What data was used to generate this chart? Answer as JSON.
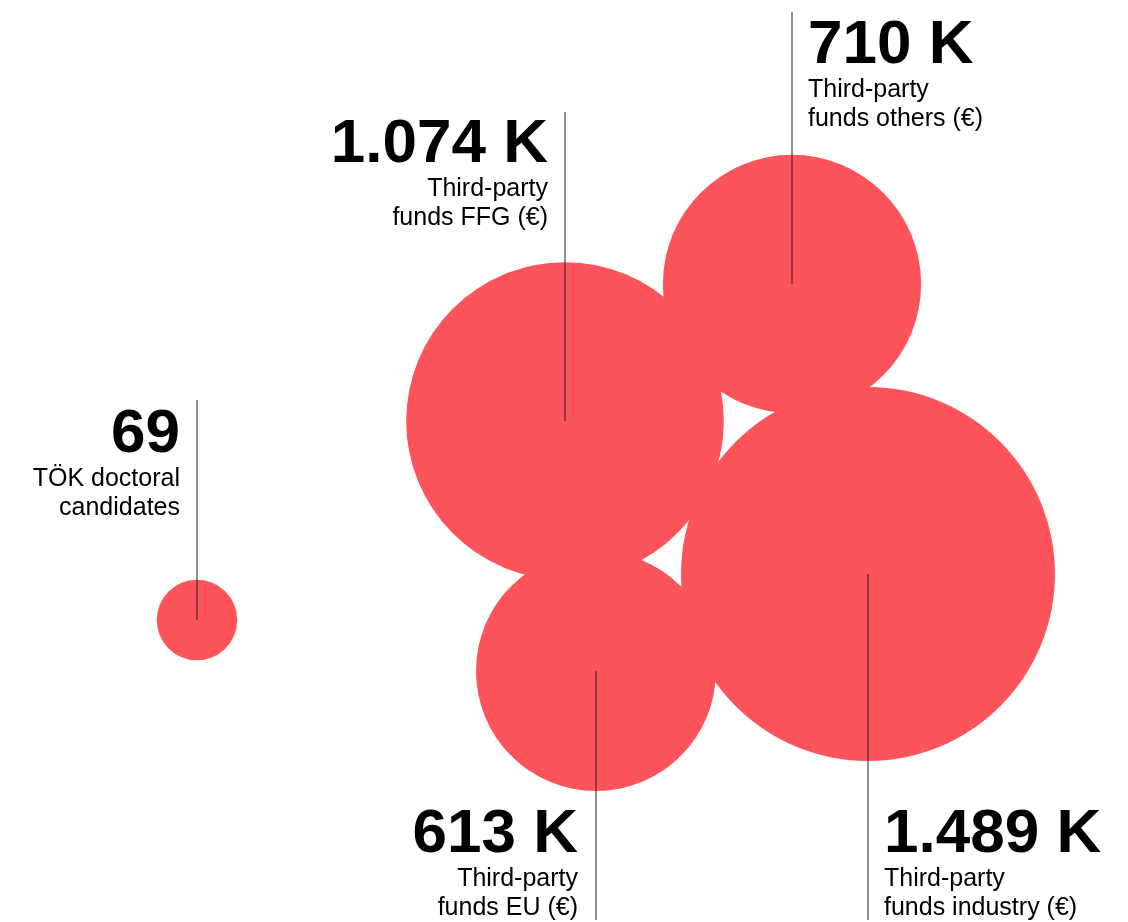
{
  "chart_data": {
    "type": "other",
    "categories": [
      "TÖK doctoral candidates",
      "Third-party funds FFG (€)",
      "Third-party funds EU (€)",
      "Third-party funds others (€)",
      "Third-party funds industry (€)"
    ],
    "values": [
      69,
      1074,
      613,
      710,
      1489
    ],
    "value_labels": [
      "69",
      "1.074 K",
      "613 K",
      "710 K",
      "1.489 K"
    ],
    "color": "#fd535b"
  }
}
